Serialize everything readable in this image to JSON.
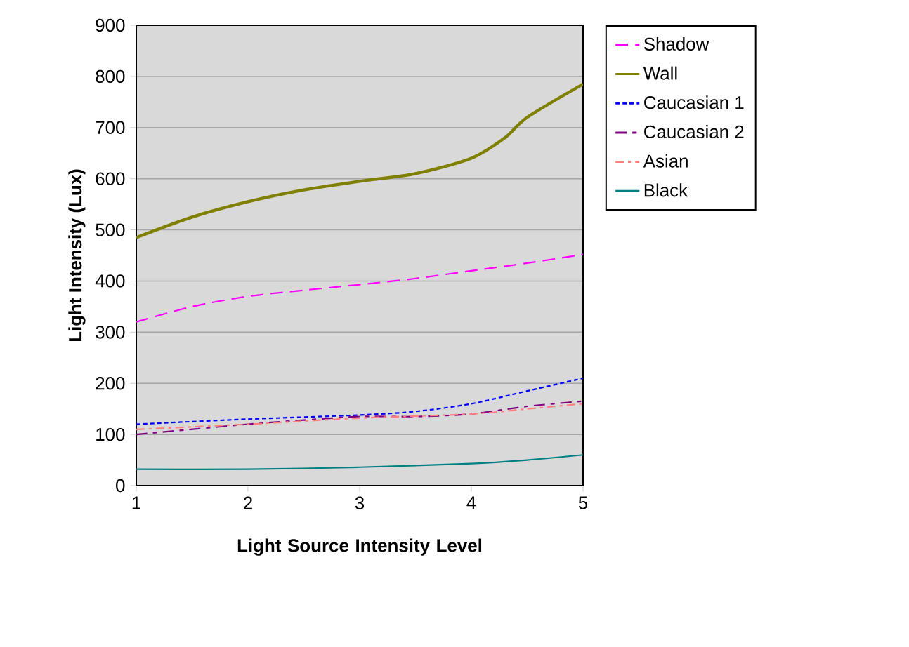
{
  "chart_data": {
    "type": "line",
    "xlabel": "Light Source Intensity Level",
    "ylabel": "Light Intensity (Lux)",
    "xlim": [
      1,
      5
    ],
    "ylim": [
      0,
      900
    ],
    "xticks": [
      1,
      2,
      3,
      4,
      5
    ],
    "yticks": [
      0,
      100,
      200,
      300,
      400,
      500,
      600,
      700,
      800,
      900
    ],
    "grid": "y",
    "legend": "right",
    "marker": "none",
    "series": [
      {
        "name": "Shadow",
        "color": "#ff00ff",
        "line_style": "dashed",
        "x": [
          1,
          1.5,
          2,
          2.5,
          3,
          3.5,
          4,
          4.5,
          5
        ],
        "values": [
          320,
          350,
          370,
          382,
          393,
          405,
          420,
          435,
          452
        ]
      },
      {
        "name": "Wall",
        "color": "#808000",
        "line_style": "solid",
        "x": [
          1,
          1.5,
          2,
          2.5,
          3,
          3.5,
          4,
          4.3,
          4.5,
          5
        ],
        "values": [
          485,
          525,
          555,
          578,
          595,
          610,
          640,
          680,
          720,
          785
        ]
      },
      {
        "name": "Caucasian 1",
        "color": "#0000ff",
        "line_style": "dotted",
        "x": [
          1,
          2,
          3,
          3.5,
          4,
          4.5,
          5
        ],
        "values": [
          120,
          130,
          138,
          145,
          160,
          185,
          210
        ]
      },
      {
        "name": "Caucasian 2",
        "color": "#800080",
        "line_style": "dashdot",
        "x": [
          1,
          2,
          2.5,
          3,
          3.5,
          4,
          4.5,
          5
        ],
        "values": [
          100,
          120,
          128,
          135,
          135,
          140,
          155,
          165
        ]
      },
      {
        "name": "Asian",
        "color": "#ff8080",
        "line_style": "dashdotted",
        "x": [
          1,
          2,
          3,
          4,
          4.5,
          5
        ],
        "values": [
          110,
          120,
          132,
          140,
          150,
          160
        ]
      },
      {
        "name": "Black",
        "color": "#008080",
        "line_style": "solid",
        "x": [
          1,
          2,
          3,
          4,
          4.5,
          5
        ],
        "values": [
          32,
          32,
          36,
          43,
          50,
          60
        ]
      }
    ]
  }
}
